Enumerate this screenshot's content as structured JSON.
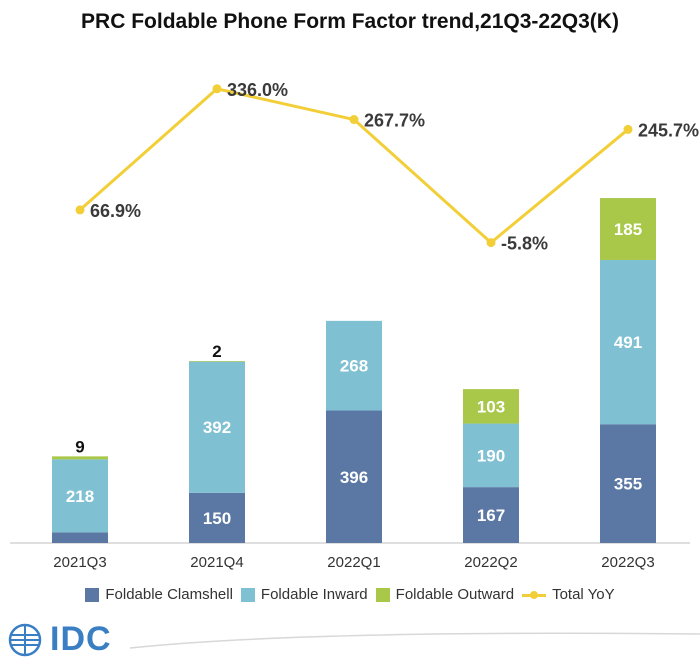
{
  "chart_data": {
    "type": "bar",
    "stacked": true,
    "title": "PRC Foldable Phone Form Factor trend,21Q3-22Q3(K)",
    "categories": [
      "2021Q3",
      "2021Q4",
      "2022Q1",
      "2022Q2",
      "2022Q3"
    ],
    "series": [
      {
        "name": "Foldable Clamshell",
        "color": "#5a78a3",
        "values": [
          32,
          150,
          396,
          167,
          355
        ],
        "labels": [
          "",
          "150",
          "396",
          "167",
          "355"
        ]
      },
      {
        "name": "Foldable Inward",
        "color": "#7fc0d3",
        "values": [
          218,
          392,
          268,
          190,
          491
        ],
        "labels": [
          "218",
          "392",
          "268",
          "190",
          "491"
        ]
      },
      {
        "name": "Foldable Outward",
        "color": "#a9c84a",
        "values": [
          9,
          2,
          0,
          103,
          185
        ],
        "labels": [
          "9",
          "2",
          "",
          "103",
          "185"
        ]
      }
    ],
    "line_series": {
      "name": "Total YoY",
      "color": "#f2cf38",
      "values": [
        66.9,
        336.0,
        267.7,
        -5.8,
        245.7
      ],
      "labels": [
        "66.9%",
        "336.0%",
        "267.7%",
        "-5.8%",
        "245.7%"
      ]
    },
    "ylim_bar": [
      0,
      1100
    ],
    "ylim_line": [
      -400,
      400
    ],
    "xlabel": "",
    "ylabel": "",
    "legend_position": "bottom"
  },
  "legend": {
    "items": [
      {
        "label": "Foldable Clamshell",
        "color": "#5a78a3"
      },
      {
        "label": "Foldable Inward",
        "color": "#7fc0d3"
      },
      {
        "label": "Foldable Outward",
        "color": "#a9c84a"
      },
      {
        "label": "Total YoY",
        "color": "#f2cf38"
      }
    ]
  },
  "branding": {
    "logo_text": "IDC",
    "logo_color": "#3a7fc4"
  }
}
